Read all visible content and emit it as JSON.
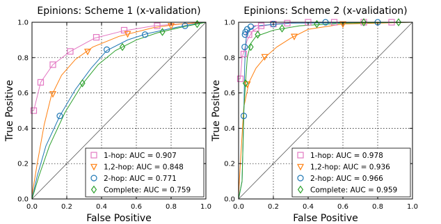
{
  "chart_data": [
    {
      "type": "line",
      "title": "Epinions: Scheme 1 (x-validation)",
      "xlabel": "False Positive",
      "ylabel": "True Positive",
      "xlim": [
        0,
        1
      ],
      "ylim": [
        0,
        1
      ],
      "x_ticks": [
        "0.0",
        "0.2",
        "0.4",
        "0.6",
        "0.8",
        "1.0"
      ],
      "y_ticks": [
        "0.0",
        "0.2",
        "0.4",
        "0.6",
        "0.8",
        "1.0"
      ],
      "grid": true,
      "legend_position": "bottom-right",
      "diagonal": true,
      "series": [
        {
          "name": "1-hop: AUC = 0.907",
          "color": "#e377c2",
          "marker": "square",
          "points": [
            [
              0,
              0.5
            ],
            [
              0.01,
              0.5
            ],
            [
              0.05,
              0.66
            ],
            [
              0.12,
              0.76
            ],
            [
              0.22,
              0.835
            ],
            [
              0.36,
              0.91
            ],
            [
              0.52,
              0.95
            ],
            [
              0.7,
              0.98
            ],
            [
              0.85,
              0.99
            ],
            [
              1.0,
              1.0
            ]
          ],
          "marker_points": [
            [
              0.01,
              0.5
            ],
            [
              0.05,
              0.66
            ],
            [
              0.12,
              0.76
            ],
            [
              0.22,
              0.835
            ],
            [
              0.37,
              0.915
            ],
            [
              0.53,
              0.955
            ],
            [
              0.72,
              0.98
            ]
          ]
        },
        {
          "name": "1,2-hop: AUC = 0.848",
          "color": "#ff7f0e",
          "marker": "triangle-down",
          "points": [
            [
              0,
              0.02
            ],
            [
              0.03,
              0.2
            ],
            [
              0.07,
              0.42
            ],
            [
              0.11,
              0.58
            ],
            [
              0.17,
              0.7
            ],
            [
              0.25,
              0.79
            ],
            [
              0.35,
              0.86
            ],
            [
              0.5,
              0.92
            ],
            [
              0.7,
              0.97
            ],
            [
              0.85,
              0.99
            ],
            [
              1.0,
              1.0
            ]
          ],
          "marker_points": [
            [
              0.12,
              0.595
            ],
            [
              0.32,
              0.835
            ],
            [
              0.55,
              0.935
            ],
            [
              0.8,
              0.98
            ]
          ]
        },
        {
          "name": "2-hop: AUC = 0.771",
          "color": "#1f77b4",
          "marker": "circle",
          "points": [
            [
              0,
              0.0
            ],
            [
              0.03,
              0.13
            ],
            [
              0.08,
              0.3
            ],
            [
              0.16,
              0.47
            ],
            [
              0.25,
              0.62
            ],
            [
              0.34,
              0.74
            ],
            [
              0.43,
              0.84
            ],
            [
              0.55,
              0.9
            ],
            [
              0.66,
              0.935
            ],
            [
              0.8,
              0.965
            ],
            [
              0.9,
              0.985
            ],
            [
              1.0,
              1.0
            ]
          ],
          "marker_points": [
            [
              0.16,
              0.47
            ],
            [
              0.43,
              0.845
            ],
            [
              0.65,
              0.93
            ],
            [
              0.88,
              0.98
            ]
          ]
        },
        {
          "name": "Complete: AUC = 0.759",
          "color": "#2ca02c",
          "marker": "diamond",
          "points": [
            [
              0,
              0.0
            ],
            [
              0.04,
              0.13
            ],
            [
              0.1,
              0.3
            ],
            [
              0.19,
              0.49
            ],
            [
              0.29,
              0.65
            ],
            [
              0.38,
              0.76
            ],
            [
              0.48,
              0.84
            ],
            [
              0.6,
              0.9
            ],
            [
              0.72,
              0.94
            ],
            [
              0.85,
              0.97
            ],
            [
              1.0,
              1.0
            ]
          ],
          "marker_points": [
            [
              0.29,
              0.655
            ],
            [
              0.52,
              0.86
            ],
            [
              0.75,
              0.945
            ],
            [
              0.95,
              0.99
            ]
          ]
        }
      ]
    },
    {
      "type": "line",
      "title": "Epinions: Scheme 2 (x-validation)",
      "xlabel": "False Positive",
      "ylabel": "True Positive",
      "xlim": [
        0,
        1
      ],
      "ylim": [
        0,
        1
      ],
      "x_ticks": [
        "0.0",
        "0.2",
        "0.4",
        "0.6",
        "0.8",
        "1.0"
      ],
      "y_ticks": [
        "0.0",
        "0.2",
        "0.4",
        "0.6",
        "0.8",
        "1.0"
      ],
      "grid": true,
      "legend_position": "bottom-right",
      "diagonal": true,
      "series": [
        {
          "name": "1-hop: AUC = 0.978",
          "color": "#e377c2",
          "marker": "square",
          "points": [
            [
              0,
              0.68
            ],
            [
              0.01,
              0.68
            ],
            [
              0.02,
              0.8
            ],
            [
              0.05,
              0.9
            ],
            [
              0.08,
              0.95
            ],
            [
              0.12,
              0.975
            ],
            [
              0.2,
              0.99
            ],
            [
              0.35,
              1.0
            ],
            [
              1.0,
              1.0
            ]
          ],
          "marker_points": [
            [
              0.01,
              0.68
            ],
            [
              0.03,
              0.82
            ],
            [
              0.06,
              0.93
            ],
            [
              0.1,
              0.965
            ],
            [
              0.13,
              0.98
            ],
            [
              0.2,
              0.99
            ],
            [
              0.28,
              0.995
            ],
            [
              0.4,
              1.0
            ],
            [
              0.55,
              1.0
            ],
            [
              0.72,
              1.0
            ],
            [
              0.88,
              1.0
            ]
          ]
        },
        {
          "name": "1,2-hop: AUC = 0.936",
          "color": "#ff7f0e",
          "marker": "triangle-down",
          "points": [
            [
              0,
              0.02
            ],
            [
              0.01,
              0.2
            ],
            [
              0.03,
              0.52
            ],
            [
              0.06,
              0.66
            ],
            [
              0.1,
              0.74
            ],
            [
              0.15,
              0.8
            ],
            [
              0.22,
              0.86
            ],
            [
              0.3,
              0.91
            ],
            [
              0.4,
              0.96
            ],
            [
              0.6,
              0.99
            ],
            [
              1.0,
              1.0
            ]
          ],
          "marker_points": [
            [
              0.05,
              0.65
            ],
            [
              0.15,
              0.805
            ],
            [
              0.32,
              0.92
            ],
            [
              0.6,
              0.99
            ]
          ]
        },
        {
          "name": "2-hop: AUC = 0.966",
          "color": "#1f77b4",
          "marker": "circle",
          "points": [
            [
              0,
              0.0
            ],
            [
              0.02,
              0.1
            ],
            [
              0.03,
              0.47
            ],
            [
              0.035,
              0.75
            ],
            [
              0.04,
              0.87
            ],
            [
              0.045,
              0.92
            ],
            [
              0.05,
              0.95
            ],
            [
              0.1,
              0.98
            ],
            [
              0.3,
              0.995
            ],
            [
              1.0,
              1.0
            ]
          ],
          "marker_points": [
            [
              0.03,
              0.47
            ],
            [
              0.035,
              0.86
            ],
            [
              0.037,
              0.93
            ],
            [
              0.04,
              0.945
            ],
            [
              0.05,
              0.96
            ],
            [
              0.07,
              0.975
            ],
            [
              0.2,
              0.99
            ],
            [
              0.5,
              1.0
            ],
            [
              0.8,
              1.0
            ]
          ]
        },
        {
          "name": "Complete: AUC = 0.959",
          "color": "#2ca02c",
          "marker": "diamond",
          "points": [
            [
              0,
              0.0
            ],
            [
              0.02,
              0.1
            ],
            [
              0.03,
              0.5
            ],
            [
              0.04,
              0.66
            ],
            [
              0.05,
              0.8
            ],
            [
              0.07,
              0.88
            ],
            [
              0.1,
              0.92
            ],
            [
              0.2,
              0.955
            ],
            [
              0.35,
              0.98
            ],
            [
              0.6,
              0.995
            ],
            [
              1.0,
              1.0
            ]
          ],
          "marker_points": [
            [
              0.04,
              0.655
            ],
            [
              0.07,
              0.86
            ],
            [
              0.11,
              0.93
            ],
            [
              0.25,
              0.965
            ],
            [
              0.45,
              0.99
            ],
            [
              0.72,
              1.0
            ],
            [
              0.92,
              1.0
            ]
          ]
        }
      ]
    }
  ]
}
